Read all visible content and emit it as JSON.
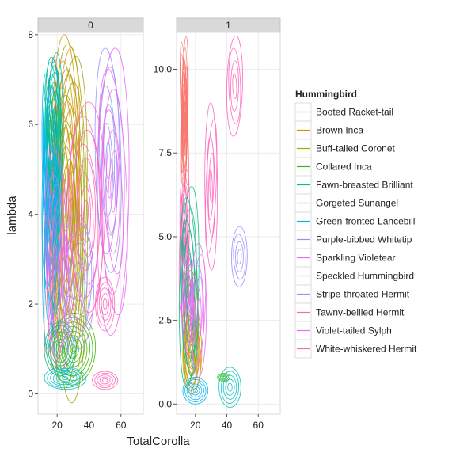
{
  "chart_data": {
    "type": "contour",
    "xlabel": "TotalCorolla",
    "ylabel": "lambda",
    "legend": {
      "title": "Hummingbird",
      "placement": "right",
      "entries": [
        {
          "name": "Booted Racket-tail",
          "color": "#F8766D"
        },
        {
          "name": "Brown Inca",
          "color": "#D89000"
        },
        {
          "name": "Buff-tailed Coronet",
          "color": "#A3A500"
        },
        {
          "name": "Collared Inca",
          "color": "#39B600"
        },
        {
          "name": "Fawn-breasted Brilliant",
          "color": "#00BF7D"
        },
        {
          "name": "Gorgeted Sunangel",
          "color": "#00BFC4"
        },
        {
          "name": "Green-fronted Lancebill",
          "color": "#00B0F6"
        },
        {
          "name": "Purple-bibbed Whitetip",
          "color": "#9590FF"
        },
        {
          "name": "Sparkling Violetear",
          "color": "#E76BF3"
        },
        {
          "name": "Speckled Hummingbird",
          "color": "#FF62BC"
        },
        {
          "name": "Stripe-throated Hermit",
          "color": "#9590FF"
        },
        {
          "name": "Tawny-bellied Hermit",
          "color": "#FF62BC"
        },
        {
          "name": "Violet-tailed Sylph",
          "color": "#E76BF3"
        },
        {
          "name": "White-whiskered Hermit",
          "color": "#FF62BC"
        }
      ]
    },
    "x_ticks": [
      20,
      40,
      60
    ],
    "grid": true,
    "panels": [
      {
        "strip": "0",
        "xlim": [
          8,
          74
        ],
        "ylim": [
          -0.45,
          8.05
        ],
        "y_ticks": [
          0,
          2,
          4,
          6,
          8
        ],
        "y_tick_labels": [
          "0",
          "2",
          "4",
          "6",
          "8"
        ],
        "clusters": [
          {
            "series": 0,
            "cx": 18,
            "cy": 4.0,
            "rx": 5,
            "ry": 3.5,
            "rings": 10
          },
          {
            "series": 1,
            "cx": 25,
            "cy": 4.5,
            "rx": 9,
            "ry": 3.5,
            "rings": 12
          },
          {
            "series": 2,
            "cx": 28,
            "cy": 3.8,
            "rx": 11,
            "ry": 4.0,
            "rings": 14
          },
          {
            "series": 3,
            "cx": 30,
            "cy": 1.0,
            "rx": 14,
            "ry": 0.8,
            "rings": 8
          },
          {
            "series": 4,
            "cx": 22,
            "cy": 1.0,
            "rx": 10,
            "ry": 0.6,
            "rings": 8
          },
          {
            "series": 5,
            "cx": 17,
            "cy": 5.0,
            "rx": 6,
            "ry": 2.6,
            "rings": 12
          },
          {
            "series": 6,
            "cx": 16,
            "cy": 4.2,
            "rx": 5,
            "ry": 3.2,
            "rings": 12
          },
          {
            "series": 7,
            "cx": 52,
            "cy": 5.2,
            "rx": 8,
            "ry": 2.5,
            "rings": 6
          },
          {
            "series": 8,
            "cx": 55,
            "cy": 4.5,
            "rx": 10,
            "ry": 3.2,
            "rings": 7
          },
          {
            "series": 9,
            "cx": 50,
            "cy": 2.0,
            "rx": 6,
            "ry": 0.6,
            "rings": 5
          },
          {
            "series": 10,
            "cx": 33,
            "cy": 2.5,
            "rx": 10,
            "ry": 1.5,
            "rings": 7
          },
          {
            "series": 11,
            "cx": 38,
            "cy": 4.0,
            "rx": 12,
            "ry": 2.5,
            "rings": 8
          },
          {
            "series": 12,
            "cx": 20,
            "cy": 3.0,
            "rx": 7,
            "ry": 2.5,
            "rings": 9
          },
          {
            "series": 13,
            "cx": 50,
            "cy": 0.3,
            "rx": 8,
            "ry": 0.2,
            "rings": 5
          },
          {
            "series": 5,
            "cx": 25,
            "cy": 0.35,
            "rx": 13,
            "ry": 0.25,
            "rings": 7
          },
          {
            "series": 4,
            "cx": 18,
            "cy": 6.0,
            "rx": 5,
            "ry": 1.5,
            "rings": 8
          }
        ]
      },
      {
        "strip": "1",
        "xlim": [
          8,
          74
        ],
        "ylim": [
          -0.3,
          11.1
        ],
        "y_ticks": [
          0.0,
          2.5,
          5.0,
          7.5,
          10.0
        ],
        "y_tick_labels": [
          "0.0",
          "2.5",
          "5.0",
          "7.5",
          "10.0"
        ],
        "clusters": [
          {
            "series": 0,
            "cx": 13,
            "cy": 8.5,
            "rx": 2.2,
            "ry": 2.5,
            "rings": 14
          },
          {
            "series": 9,
            "cx": 13,
            "cy": 4.8,
            "rx": 3,
            "ry": 2.2,
            "rings": 9
          },
          {
            "series": 11,
            "cx": 30,
            "cy": 6.5,
            "rx": 4,
            "ry": 2.5,
            "rings": 5
          },
          {
            "series": 13,
            "cx": 45,
            "cy": 9.5,
            "rx": 5,
            "ry": 1.5,
            "rings": 4
          },
          {
            "series": 10,
            "cx": 48,
            "cy": 4.4,
            "rx": 5,
            "ry": 0.9,
            "rings": 4
          },
          {
            "series": 1,
            "cx": 18,
            "cy": 1.5,
            "rx": 6,
            "ry": 1.2,
            "rings": 8
          },
          {
            "series": 2,
            "cx": 17,
            "cy": 2.2,
            "rx": 5,
            "ry": 1.8,
            "rings": 8
          },
          {
            "series": 3,
            "cx": 38,
            "cy": 0.8,
            "rx": 4,
            "ry": 0.12,
            "rings": 4
          },
          {
            "series": 4,
            "cx": 16,
            "cy": 3.5,
            "rx": 6,
            "ry": 3.0,
            "rings": 9
          },
          {
            "series": 5,
            "cx": 42,
            "cy": 0.5,
            "rx": 7,
            "ry": 0.6,
            "rings": 5
          },
          {
            "series": 6,
            "cx": 20,
            "cy": 0.4,
            "rx": 8,
            "ry": 0.4,
            "rings": 6
          },
          {
            "series": 8,
            "cx": 15,
            "cy": 3.0,
            "rx": 4,
            "ry": 1.6,
            "rings": 7
          },
          {
            "series": 12,
            "cx": 22,
            "cy": 2.8,
            "rx": 5,
            "ry": 2.0,
            "rings": 6
          }
        ]
      }
    ]
  }
}
